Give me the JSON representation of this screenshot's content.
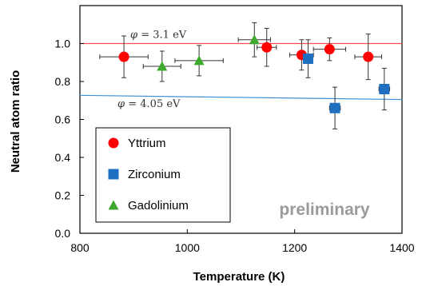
{
  "chart_data": {
    "type": "scatter",
    "title": "",
    "xlabel": "Temperature (K)",
    "ylabel": "Neutral atom ratio",
    "xlim": [
      800,
      1400
    ],
    "ylim": [
      0.0,
      1.2
    ],
    "xticks": [
      "800",
      "1000",
      "1200",
      "1400"
    ],
    "xtick_values": [
      800,
      1000,
      1200,
      1400
    ],
    "yticks": [
      "0.0",
      "0.2",
      "0.4",
      "0.6",
      "0.8",
      "1.0"
    ],
    "ytick_values": [
      0.0,
      0.2,
      0.4,
      0.6,
      0.8,
      1.0
    ],
    "grid": false,
    "legend_position": "bottom-left",
    "series": [
      {
        "name": "Yttrium",
        "marker": "circle",
        "color": "#ff0000",
        "points": [
          {
            "x": 882,
            "y": 0.93,
            "xerr": 45,
            "yerr": 0.11
          },
          {
            "x": 1148,
            "y": 0.98,
            "xerr": 18,
            "yerr": 0.1
          },
          {
            "x": 1213,
            "y": 0.94,
            "xerr": 22,
            "yerr": 0.08
          },
          {
            "x": 1265,
            "y": 0.97,
            "xerr": 30,
            "yerr": 0.06
          },
          {
            "x": 1337,
            "y": 0.93,
            "xerr": 25,
            "yerr": 0.12
          }
        ]
      },
      {
        "name": "Zirconium",
        "marker": "square",
        "color": "#1f6fc0",
        "points": [
          {
            "x": 1225,
            "y": 0.92,
            "xerr": 8,
            "yerr": 0.1
          },
          {
            "x": 1275,
            "y": 0.66,
            "xerr": 10,
            "yerr": 0.11
          },
          {
            "x": 1367,
            "y": 0.76,
            "xerr": 10,
            "yerr": 0.11
          }
        ]
      },
      {
        "name": "Gadolinium",
        "marker": "triangle",
        "color": "#3daa2e",
        "points": [
          {
            "x": 953,
            "y": 0.88,
            "xerr": 35,
            "yerr": 0.08
          },
          {
            "x": 1022,
            "y": 0.91,
            "xerr": 45,
            "yerr": 0.08
          },
          {
            "x": 1125,
            "y": 1.02,
            "xerr": 30,
            "yerr": 0.09
          }
        ]
      }
    ],
    "reference_lines": [
      {
        "label": "φ = 3.1 eV",
        "color": "#ff4d4d",
        "x1": 800,
        "y1": 1.0,
        "x2": 1400,
        "y2": 1.0
      },
      {
        "label": "φ = 4.05 eV",
        "color": "#3a8fd6",
        "x1": 800,
        "y1": 0.727,
        "x2": 1400,
        "y2": 0.705
      }
    ],
    "annotation": "preliminary"
  }
}
